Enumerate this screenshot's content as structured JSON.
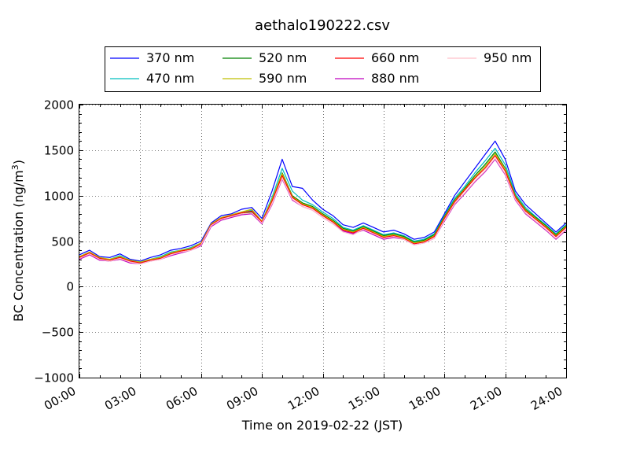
{
  "chart_data": {
    "type": "line",
    "title": "aethalo190222.csv",
    "xlabel": "Time on 2019-02-22 (JST)",
    "ylabel_main": "BC Concentration (ng/m",
    "ylabel_sup": "3",
    "ylabel_tail": ")",
    "xlim": [
      "00:00",
      "24:00"
    ],
    "ylim": [
      -1000,
      2000
    ],
    "x_ticks": [
      "00:00",
      "03:00",
      "06:00",
      "09:00",
      "12:00",
      "15:00",
      "18:00",
      "21:00",
      "24:00"
    ],
    "y_ticks": [
      "−1000",
      "−500",
      "0",
      "500",
      "1000",
      "1500",
      "2000"
    ],
    "grid": "dotted",
    "legend_position": "top-center",
    "x": [
      "00:00",
      "00:30",
      "01:00",
      "01:30",
      "02:00",
      "02:30",
      "03:00",
      "03:30",
      "04:00",
      "04:30",
      "05:00",
      "05:30",
      "06:00",
      "06:30",
      "07:00",
      "07:30",
      "08:00",
      "08:30",
      "09:00",
      "09:30",
      "10:00",
      "10:30",
      "11:00",
      "11:30",
      "12:00",
      "12:30",
      "13:00",
      "13:30",
      "14:00",
      "14:30",
      "15:00",
      "15:30",
      "16:00",
      "16:30",
      "17:00",
      "17:30",
      "18:00",
      "18:30",
      "19:00",
      "19:30",
      "20:00",
      "20:30",
      "21:00",
      "21:30",
      "22:00",
      "22:30",
      "23:00",
      "23:30",
      "24:00"
    ],
    "series": [
      {
        "name": "370 nm",
        "color": "#0000ff",
        "values": [
          350,
          400,
          330,
          320,
          360,
          300,
          280,
          320,
          350,
          400,
          420,
          450,
          500,
          700,
          780,
          800,
          850,
          870,
          750,
          1050,
          1400,
          1100,
          1080,
          950,
          850,
          780,
          680,
          650,
          700,
          650,
          600,
          620,
          580,
          520,
          540,
          600,
          800,
          1000,
          1150,
          1300,
          1450,
          1600,
          1400,
          1050,
          900,
          800,
          700,
          600,
          700
        ]
      },
      {
        "name": "470 nm",
        "color": "#00bfbf",
        "values": [
          330,
          380,
          310,
          300,
          340,
          290,
          270,
          300,
          330,
          380,
          400,
          430,
          480,
          680,
          760,
          780,
          820,
          840,
          720,
          980,
          1300,
          1050,
          950,
          900,
          820,
          750,
          650,
          620,
          670,
          620,
          570,
          590,
          560,
          500,
          520,
          580,
          780,
          970,
          1100,
          1250,
          1380,
          1520,
          1340,
          1020,
          870,
          770,
          680,
          580,
          680
        ]
      },
      {
        "name": "520 nm",
        "color": "#008000",
        "values": [
          320,
          370,
          300,
          290,
          330,
          280,
          260,
          290,
          320,
          370,
          390,
          420,
          470,
          670,
          750,
          770,
          800,
          820,
          700,
          950,
          1250,
          1000,
          920,
          880,
          800,
          730,
          640,
          610,
          660,
          610,
          560,
          580,
          550,
          490,
          510,
          570,
          770,
          950,
          1080,
          1220,
          1340,
          1480,
          1300,
          1000,
          850,
          760,
          670,
          570,
          670
        ]
      },
      {
        "name": "590 nm",
        "color": "#bfbf00",
        "values": [
          330,
          380,
          320,
          300,
          330,
          290,
          270,
          300,
          320,
          370,
          400,
          420,
          480,
          690,
          760,
          790,
          820,
          850,
          720,
          960,
          1240,
          990,
          910,
          870,
          790,
          720,
          630,
          600,
          650,
          600,
          550,
          570,
          540,
          480,
          500,
          560,
          760,
          940,
          1070,
          1200,
          1320,
          1460,
          1290,
          990,
          840,
          750,
          660,
          560,
          660
        ]
      },
      {
        "name": "660 nm",
        "color": "#ff0000",
        "values": [
          320,
          370,
          310,
          290,
          320,
          280,
          260,
          290,
          310,
          360,
          390,
          410,
          470,
          680,
          750,
          780,
          810,
          830,
          710,
          940,
          1220,
          980,
          900,
          860,
          780,
          710,
          620,
          590,
          640,
          590,
          540,
          560,
          530,
          470,
          490,
          550,
          750,
          930,
          1060,
          1190,
          1300,
          1440,
          1270,
          980,
          830,
          740,
          650,
          550,
          650
        ]
      },
      {
        "name": "880 nm",
        "color": "#bf00bf",
        "values": [
          300,
          350,
          290,
          280,
          300,
          260,
          250,
          280,
          300,
          340,
          370,
          400,
          450,
          660,
          730,
          760,
          790,
          800,
          690,
          900,
          1180,
          950,
          880,
          840,
          760,
          690,
          610,
          580,
          620,
          570,
          520,
          540,
          520,
          460,
          480,
          530,
          720,
          900,
          1020,
          1150,
          1260,
          1400,
          1230,
          950,
          800,
          710,
          620,
          520,
          620
        ]
      },
      {
        "name": "950 nm",
        "color": "#ffc0cb",
        "values": [
          310,
          360,
          300,
          280,
          310,
          270,
          250,
          280,
          300,
          350,
          380,
          400,
          460,
          670,
          740,
          770,
          800,
          810,
          700,
          910,
          1190,
          960,
          880,
          840,
          760,
          690,
          600,
          570,
          630,
          580,
          530,
          550,
          520,
          460,
          480,
          530,
          730,
          910,
          1030,
          1160,
          1270,
          1410,
          1240,
          960,
          810,
          720,
          630,
          530,
          630
        ]
      }
    ]
  }
}
